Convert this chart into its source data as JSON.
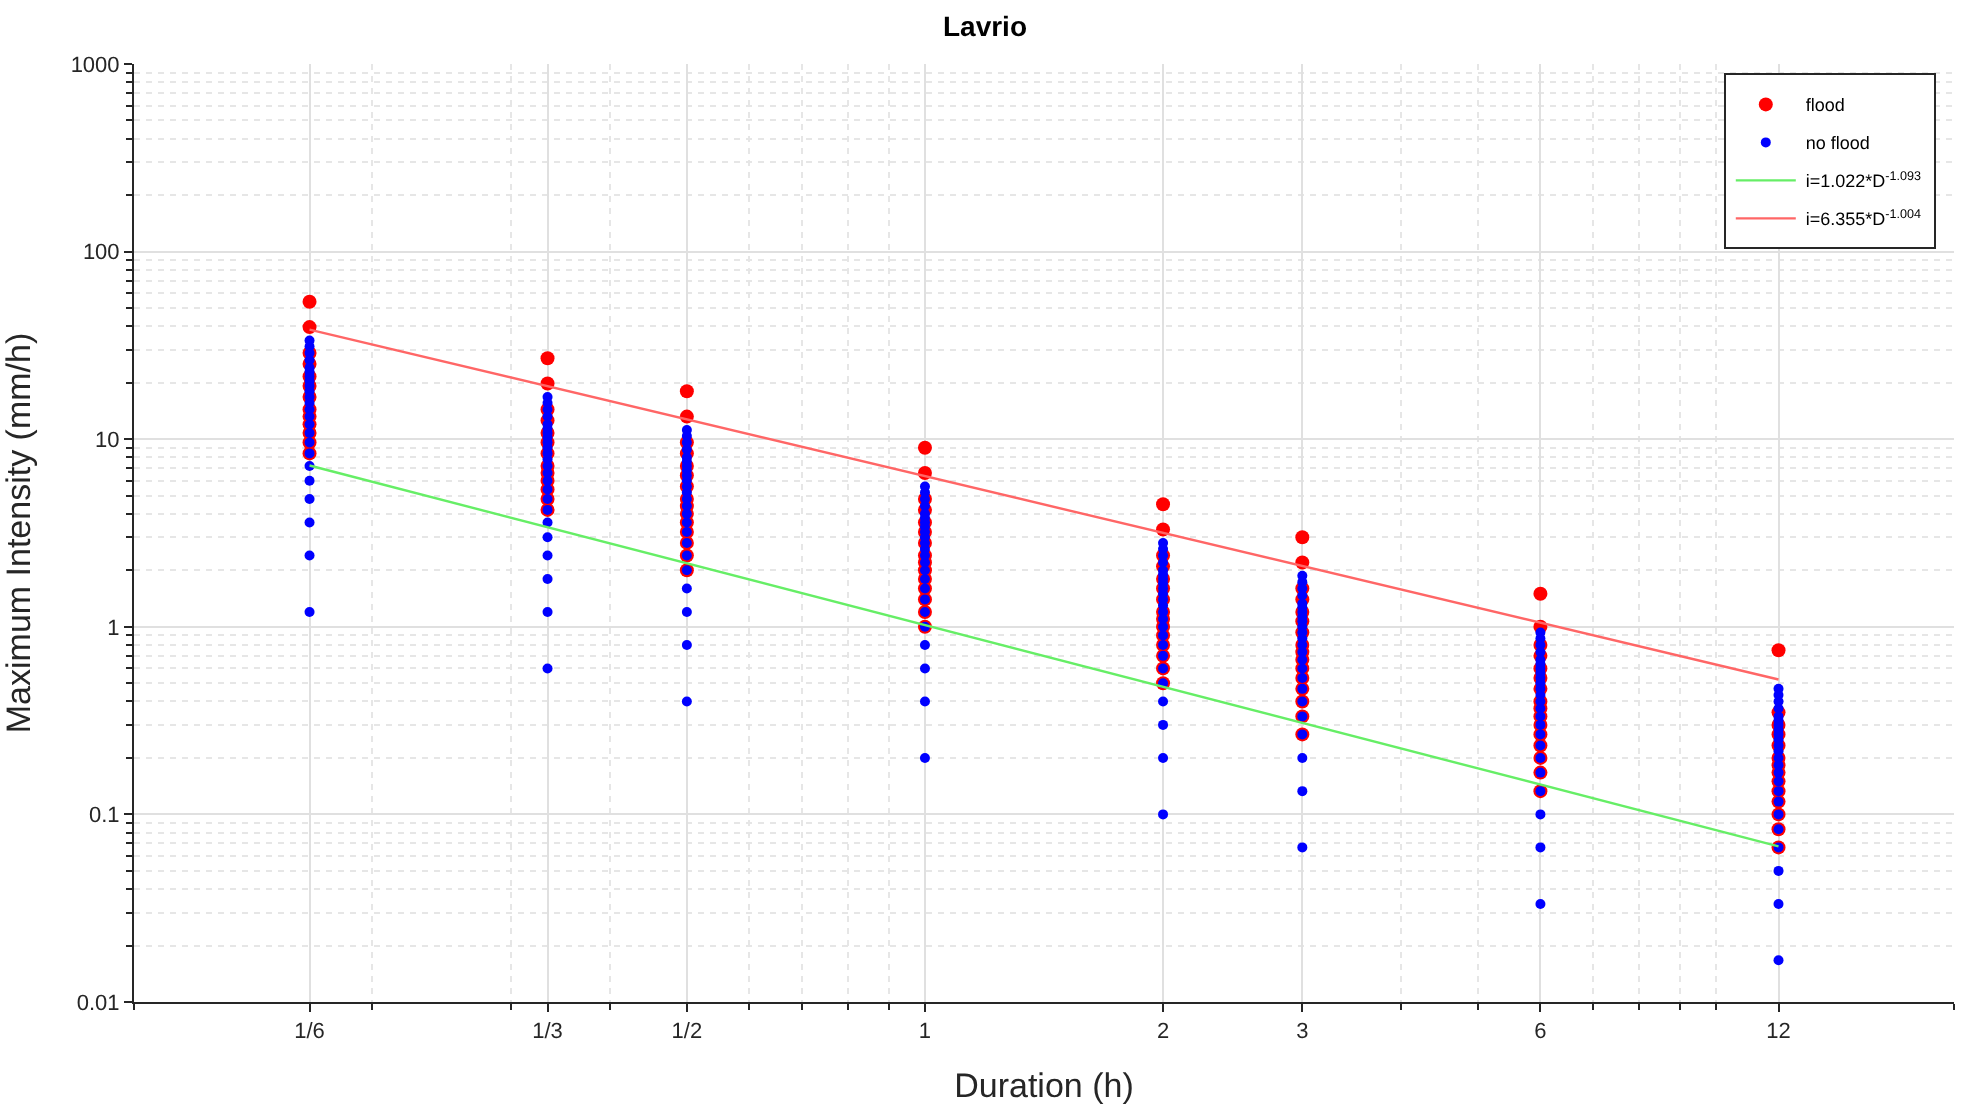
{
  "chart_data": {
    "type": "scatter",
    "title": "Lavrio",
    "xlabel": "Duration (h)",
    "ylabel": "Maximum Intensity (mm/h)",
    "log": "xy",
    "grid": true,
    "legend": "top right",
    "marker": "circle",
    "xlim": [
      0.1,
      20
    ],
    "ylim": [
      0.01,
      1000
    ],
    "xticks": [
      {
        "value": 0.1667,
        "label": "1/6"
      },
      {
        "value": 0.3333,
        "label": "1/3"
      },
      {
        "value": 0.5,
        "label": "1/2"
      },
      1,
      2,
      3,
      6,
      12
    ],
    "yticks": [
      0.01,
      0.1,
      1,
      10,
      100,
      1000
    ],
    "series": [
      {
        "name": "flood",
        "color": "#ff0000",
        "type": "scatter",
        "x": [
          0.1667,
          0.1667,
          0.1667,
          0.1667,
          0.1667,
          0.1667,
          0.1667,
          0.1667,
          0.1667,
          0.1667,
          0.1667,
          0.1667,
          0.1667,
          0.3333,
          0.3333,
          0.3333,
          0.3333,
          0.3333,
          0.3333,
          0.3333,
          0.3333,
          0.3333,
          0.3333,
          0.3333,
          0.3333,
          0.3333,
          0.5,
          0.5,
          0.5,
          0.5,
          0.5,
          0.5,
          0.5,
          0.5,
          0.5,
          0.5,
          0.5,
          0.5,
          0.5,
          0.5,
          0.5,
          1,
          1,
          1,
          1,
          1,
          1,
          1,
          1,
          1,
          1,
          1,
          1,
          1,
          1,
          1,
          2,
          2,
          2,
          2,
          2,
          2,
          2,
          2,
          2,
          2,
          2,
          2,
          2,
          2,
          2,
          3,
          3,
          3,
          3,
          3,
          3,
          3,
          3,
          3,
          3,
          3,
          3,
          3,
          3,
          3,
          3,
          6,
          6,
          6,
          6,
          6,
          6,
          6,
          6,
          6,
          6,
          6,
          6,
          6,
          6,
          6,
          6,
          12,
          12,
          12,
          12,
          12,
          12,
          12,
          12,
          12,
          12,
          12,
          12,
          12,
          12
        ],
        "values": [
          8.4,
          9.6,
          10.8,
          12,
          13.2,
          14.4,
          16.8,
          19.2,
          21.6,
          25.2,
          28.8,
          39.6,
          54,
          4.2,
          4.8,
          5.4,
          6,
          6.6,
          7.2,
          8.4,
          9.6,
          10.8,
          12.6,
          14.4,
          19.8,
          27,
          2,
          2.4,
          2.8,
          3.2,
          3.6,
          4,
          4.4,
          4.8,
          5.6,
          6.4,
          7.2,
          8.4,
          9.6,
          13.2,
          18,
          1,
          1.2,
          1.4,
          1.6,
          1.8,
          2,
          2.2,
          2.4,
          2.8,
          3.2,
          3.6,
          4.2,
          4.8,
          6.6,
          9,
          0.5,
          0.6,
          0.7,
          0.8,
          0.9,
          1,
          1.1,
          1.2,
          1.4,
          1.6,
          1.8,
          2.1,
          2.4,
          3.3,
          4.5,
          0.267,
          0.333,
          0.4,
          0.467,
          0.533,
          0.6,
          0.667,
          0.733,
          0.8,
          0.933,
          1.07,
          1.2,
          1.4,
          1.6,
          2.2,
          3,
          0.133,
          0.167,
          0.2,
          0.233,
          0.267,
          0.3,
          0.333,
          0.367,
          0.4,
          0.467,
          0.533,
          0.6,
          0.7,
          0.8,
          1,
          1.5,
          0.0667,
          0.0833,
          0.1,
          0.117,
          0.133,
          0.15,
          0.167,
          0.183,
          0.2,
          0.233,
          0.267,
          0.3,
          0.35,
          0.75
        ]
      },
      {
        "name": "no flood",
        "color": "#0000ff",
        "type": "scatter",
        "x": [
          0.1667,
          0.1667,
          0.1667,
          0.1667,
          0.1667,
          0.1667,
          0.1667,
          0.1667,
          0.1667,
          0.1667,
          0.1667,
          0.1667,
          0.1667,
          0.1667,
          0.1667,
          0.1667,
          0.1667,
          0.1667,
          0.1667,
          0.1667,
          0.1667,
          0.1667,
          0.1667,
          0.1667,
          0.3333,
          0.3333,
          0.3333,
          0.3333,
          0.3333,
          0.3333,
          0.3333,
          0.3333,
          0.3333,
          0.3333,
          0.3333,
          0.3333,
          0.3333,
          0.3333,
          0.3333,
          0.3333,
          0.3333,
          0.3333,
          0.3333,
          0.3333,
          0.3333,
          0.3333,
          0.3333,
          0.3333,
          0.5,
          0.5,
          0.5,
          0.5,
          0.5,
          0.5,
          0.5,
          0.5,
          0.5,
          0.5,
          0.5,
          0.5,
          0.5,
          0.5,
          0.5,
          0.5,
          0.5,
          0.5,
          0.5,
          0.5,
          0.5,
          0.5,
          0.5,
          0.5,
          1,
          1,
          1,
          1,
          1,
          1,
          1,
          1,
          1,
          1,
          1,
          1,
          1,
          1,
          1,
          1,
          1,
          1,
          1,
          1,
          1,
          1,
          1,
          1,
          2,
          2,
          2,
          2,
          2,
          2,
          2,
          2,
          2,
          2,
          2,
          2,
          2,
          2,
          2,
          2,
          2,
          2,
          2,
          2,
          2,
          2,
          2,
          2,
          3,
          3,
          3,
          3,
          3,
          3,
          3,
          3,
          3,
          3,
          3,
          3,
          3,
          3,
          3,
          3,
          3,
          3,
          3,
          3,
          3,
          3,
          3,
          3,
          6,
          6,
          6,
          6,
          6,
          6,
          6,
          6,
          6,
          6,
          6,
          6,
          6,
          6,
          6,
          6,
          6,
          6,
          6,
          6,
          6,
          6,
          6,
          6,
          12,
          12,
          12,
          12,
          12,
          12,
          12,
          12,
          12,
          12,
          12,
          12,
          12,
          12,
          12,
          12,
          12,
          12,
          12,
          12,
          12,
          12,
          12,
          12
        ],
        "values": [
          1.2,
          2.4,
          3.6,
          4.8,
          6,
          7.2,
          8.4,
          9.6,
          10.8,
          12,
          13.2,
          14.4,
          15.6,
          16.8,
          18,
          19.2,
          20.4,
          21.6,
          22.8,
          24,
          26.4,
          28.8,
          31.2,
          33.6,
          0.6,
          1.2,
          1.8,
          2.4,
          3,
          3.6,
          4.2,
          4.8,
          5.4,
          6,
          6.6,
          7.2,
          7.8,
          8.4,
          9,
          9.6,
          10.2,
          10.8,
          11.4,
          12,
          13.2,
          14.4,
          15.6,
          16.8,
          0.4,
          0.8,
          1.2,
          1.6,
          2,
          2.4,
          2.8,
          3.2,
          3.6,
          4,
          4.4,
          4.8,
          5.2,
          5.6,
          6,
          6.4,
          6.8,
          7.2,
          7.6,
          8,
          8.8,
          9.6,
          10.4,
          11.2,
          0.2,
          0.4,
          0.6,
          0.8,
          1,
          1.2,
          1.4,
          1.6,
          1.8,
          2,
          2.2,
          2.4,
          2.6,
          2.8,
          3,
          3.2,
          3.4,
          3.6,
          3.8,
          4,
          4.4,
          4.8,
          5.2,
          5.6,
          0.1,
          0.2,
          0.3,
          0.4,
          0.5,
          0.6,
          0.7,
          0.8,
          0.9,
          1,
          1.1,
          1.2,
          1.3,
          1.4,
          1.5,
          1.6,
          1.7,
          1.8,
          1.9,
          2,
          2.2,
          2.4,
          2.6,
          2.8,
          0.0667,
          0.133,
          0.2,
          0.267,
          0.333,
          0.4,
          0.467,
          0.533,
          0.6,
          0.667,
          0.733,
          0.8,
          0.867,
          0.933,
          1,
          1.07,
          1.13,
          1.2,
          1.27,
          1.33,
          1.47,
          1.6,
          1.73,
          1.87,
          0.0333,
          0.0667,
          0.1,
          0.133,
          0.167,
          0.2,
          0.233,
          0.267,
          0.3,
          0.333,
          0.367,
          0.4,
          0.433,
          0.467,
          0.5,
          0.533,
          0.567,
          0.6,
          0.633,
          0.667,
          0.733,
          0.8,
          0.867,
          0.933,
          0.0167,
          0.0333,
          0.05,
          0.0667,
          0.0833,
          0.1,
          0.117,
          0.133,
          0.15,
          0.167,
          0.183,
          0.2,
          0.217,
          0.233,
          0.25,
          0.267,
          0.283,
          0.3,
          0.317,
          0.333,
          0.367,
          0.4,
          0.433,
          0.467
        ]
      },
      {
        "name": "i=1.022*D$^{-1.093}$",
        "color": "#66ee66",
        "type": "line",
        "marker": "none",
        "x": [
          0.1667,
          12
        ],
        "values": [
          7.24,
          0.0676
        ]
      },
      {
        "name": "i=6.355*D$^{-1.004}$",
        "color": "#ff6666",
        "type": "line",
        "marker": "none",
        "x": [
          0.1667,
          12
        ],
        "values": [
          38.4,
          0.524
        ]
      }
    ]
  }
}
